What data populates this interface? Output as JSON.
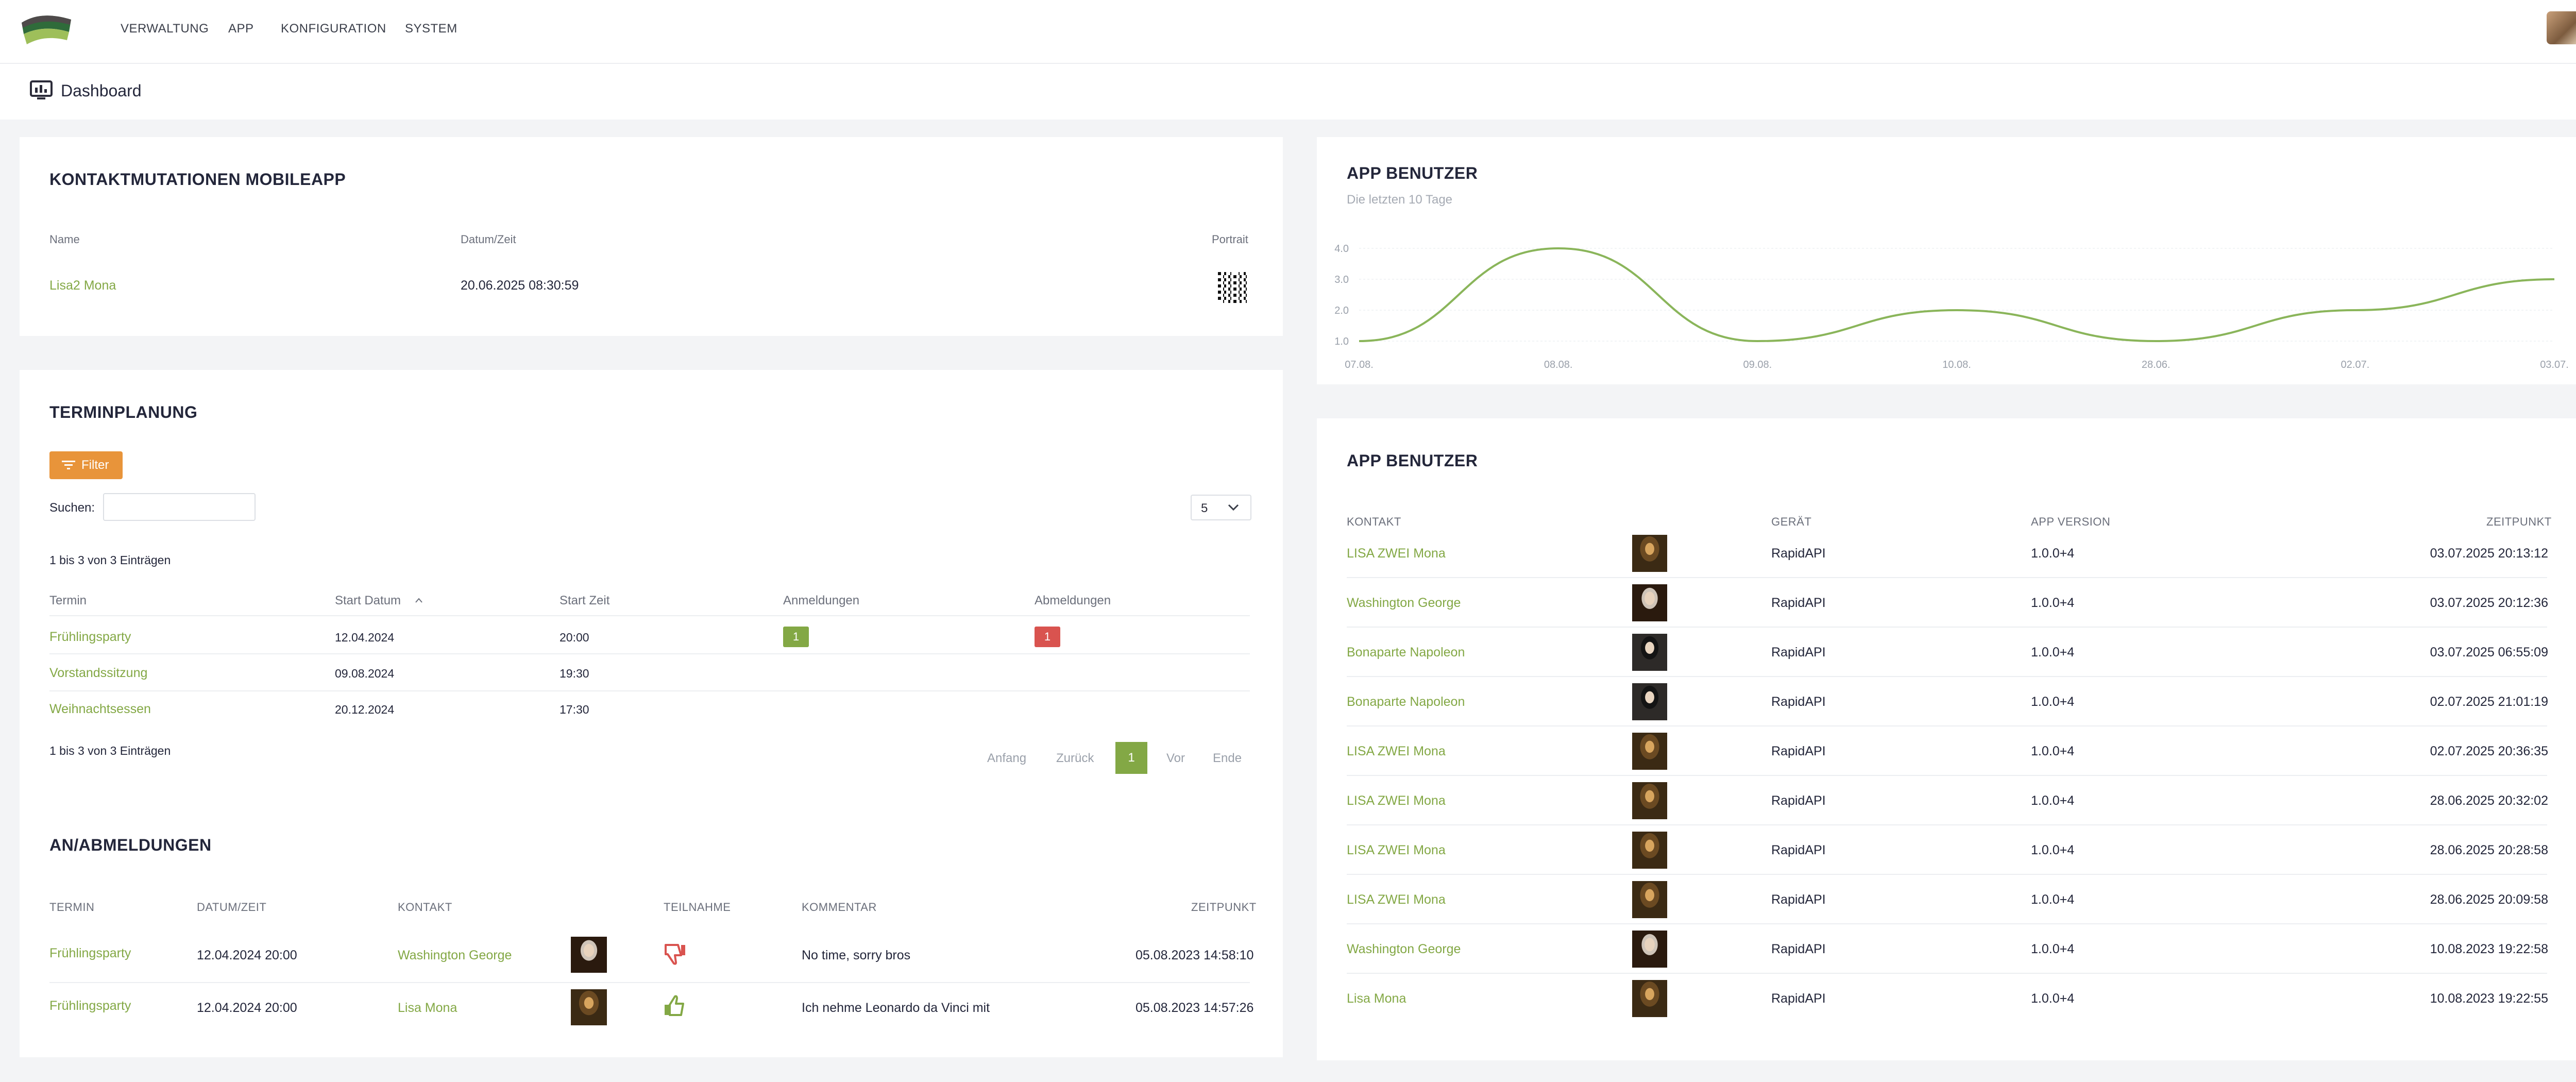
{
  "nav": {
    "items": [
      "VERWALTUNG",
      "APP",
      "KONFIGURATION",
      "SYSTEM"
    ]
  },
  "page": {
    "title": "Dashboard"
  },
  "kontakt": {
    "title": "KONTAKTMUTATIONEN MOBILEAPP",
    "headers": {
      "name": "Name",
      "datetime": "Datum/Zeit",
      "portrait": "Portrait"
    },
    "rows": [
      {
        "name": "Lisa2 Mona",
        "datetime": "20.06.2025 08:30:59"
      }
    ]
  },
  "termin": {
    "title": "TERMINPLANUNG",
    "filter_label": "Filter",
    "search_label": "Suchen:",
    "search_value": "",
    "page_size": "5",
    "info_top": "1 bis 3 von 3 Einträgen",
    "info_bottom": "1 bis 3 von 3 Einträgen",
    "headers": {
      "termin": "Termin",
      "start_datum": "Start Datum",
      "start_zeit": "Start Zeit",
      "anmeldungen": "Anmeldungen",
      "abmeldungen": "Abmeldungen"
    },
    "rows": [
      {
        "termin": "Frühlingsparty",
        "datum": "12.04.2024",
        "zeit": "20:00",
        "anmeldungen": "1",
        "abmeldungen": "1"
      },
      {
        "termin": "Vorstandssitzung",
        "datum": "09.08.2024",
        "zeit": "19:30",
        "anmeldungen": "",
        "abmeldungen": ""
      },
      {
        "termin": "Weihnachtsessen",
        "datum": "20.12.2024",
        "zeit": "17:30",
        "anmeldungen": "",
        "abmeldungen": ""
      }
    ],
    "pagination": {
      "first": "Anfang",
      "prev": "Zurück",
      "current": "1",
      "next": "Vor",
      "last": "Ende"
    }
  },
  "anab": {
    "title": "AN/ABMELDUNGEN",
    "headers": {
      "termin": "TERMIN",
      "datetime": "DATUM/ZEIT",
      "kontakt": "KONTAKT",
      "teilnahme": "TEILNAHME",
      "kommentar": "KOMMENTAR",
      "zeitpunkt": "ZEITPUNKT"
    },
    "rows": [
      {
        "termin": "Frühlingsparty",
        "datetime": "12.04.2024 20:00",
        "kontakt": "Washington George",
        "teilnahme": "thumbs-down-icon",
        "kommentar": "No time, sorry bros",
        "zeitpunkt": "05.08.2023 14:58:10"
      },
      {
        "termin": "Frühlingsparty",
        "datetime": "12.04.2024 20:00",
        "kontakt": "Lisa Mona",
        "teilnahme": "thumbs-up-icon",
        "kommentar": "Ich nehme Leonardo da Vinci mit",
        "zeitpunkt": "05.08.2023 14:57:26"
      }
    ]
  },
  "chart_card": {
    "title": "APP BENUTZER",
    "subtitle": "Die letzten 10 Tage"
  },
  "chart_data": {
    "type": "line",
    "categories": [
      "07.08.",
      "08.08.",
      "09.08.",
      "10.08.",
      "28.06.",
      "02.07.",
      "03.07."
    ],
    "series": [
      {
        "values": [
          1,
          4,
          1,
          2,
          1,
          2,
          3
        ]
      }
    ],
    "yticks": [
      "1.0",
      "2.0",
      "3.0",
      "4.0"
    ],
    "ylim": [
      1,
      4
    ],
    "grid": true,
    "color": "#8ab55a"
  },
  "users": {
    "title": "APP BENUTZER",
    "headers": {
      "kontakt": "KONTAKT",
      "geraet": "GERÄT",
      "app_version": "APP VERSION",
      "zeitpunkt": "ZEITPUNKT"
    },
    "rows": [
      {
        "kontakt": "LISA ZWEI Mona",
        "photo": "mona",
        "geraet": "RapidAPI",
        "version": "1.0.0+4",
        "zeitpunkt": "03.07.2025 20:13:12"
      },
      {
        "kontakt": "Washington George",
        "photo": "george",
        "geraet": "RapidAPI",
        "version": "1.0.0+4",
        "zeitpunkt": "03.07.2025 20:12:36"
      },
      {
        "kontakt": "Bonaparte Napoleon",
        "photo": "napoleon",
        "geraet": "RapidAPI",
        "version": "1.0.0+4",
        "zeitpunkt": "03.07.2025 06:55:09"
      },
      {
        "kontakt": "Bonaparte Napoleon",
        "photo": "napoleon",
        "geraet": "RapidAPI",
        "version": "1.0.0+4",
        "zeitpunkt": "02.07.2025 21:01:19"
      },
      {
        "kontakt": "LISA ZWEI Mona",
        "photo": "mona",
        "geraet": "RapidAPI",
        "version": "1.0.0+4",
        "zeitpunkt": "02.07.2025 20:36:35"
      },
      {
        "kontakt": "LISA ZWEI Mona",
        "photo": "mona",
        "geraet": "RapidAPI",
        "version": "1.0.0+4",
        "zeitpunkt": "28.06.2025 20:32:02"
      },
      {
        "kontakt": "LISA ZWEI Mona",
        "photo": "mona",
        "geraet": "RapidAPI",
        "version": "1.0.0+4",
        "zeitpunkt": "28.06.2025 20:28:58"
      },
      {
        "kontakt": "LISA ZWEI Mona",
        "photo": "mona",
        "geraet": "RapidAPI",
        "version": "1.0.0+4",
        "zeitpunkt": "28.06.2025 20:09:58"
      },
      {
        "kontakt": "Washington George",
        "photo": "george",
        "geraet": "RapidAPI",
        "version": "1.0.0+4",
        "zeitpunkt": "10.08.2023 19:22:58"
      },
      {
        "kontakt": "Lisa Mona",
        "photo": "mona",
        "geraet": "RapidAPI",
        "version": "1.0.0+4",
        "zeitpunkt": "10.08.2023 19:22:55"
      }
    ]
  }
}
